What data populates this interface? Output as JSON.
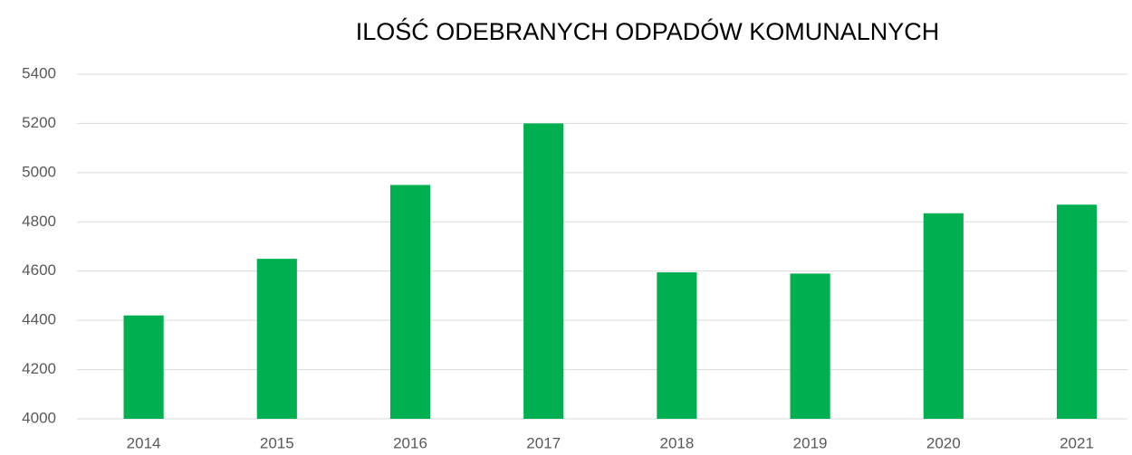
{
  "chart_data": {
    "type": "bar",
    "title": "ILOŚĆ ODEBRANYCH ODPADÓW KOMUNALNYCH",
    "categories": [
      "2014",
      "2015",
      "2016",
      "2017",
      "2018",
      "2019",
      "2020",
      "2021"
    ],
    "values": [
      4420,
      4650,
      4950,
      5200,
      4595,
      4590,
      4835,
      4870
    ],
    "color": "#00b050",
    "ylim": [
      4000,
      5400
    ],
    "yticks": [
      4000,
      4200,
      4400,
      4600,
      4800,
      5000,
      5200,
      5400
    ],
    "grid": true
  }
}
